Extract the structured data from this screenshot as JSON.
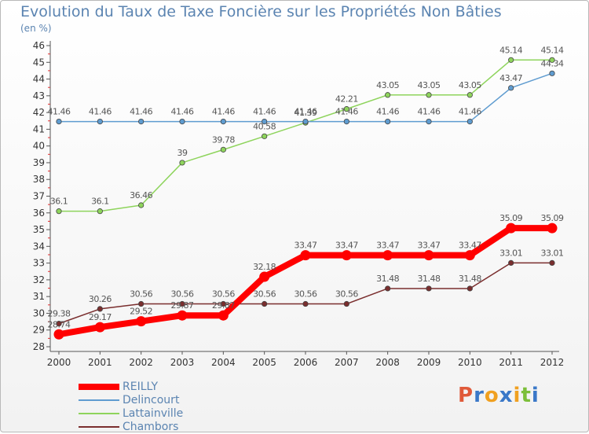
{
  "title": "Evolution du Taux de Taxe Foncière sur les Propriétés Non Bâties",
  "subtitle": "(en %)",
  "logo": {
    "text": "Proxiti",
    "colors": [
      "#e05a3a",
      "#3a78c8",
      "#f0a020",
      "#3a78c8",
      "#f0a020",
      "#7cbf3a",
      "#3a78c8"
    ]
  },
  "chart_data": {
    "type": "line",
    "title": "Evolution du Taux de Taxe Foncière sur les Propriétés Non Bâties",
    "ylabel": "(en %)",
    "xlabel": "",
    "x": [
      "2000",
      "2001",
      "2002",
      "2003",
      "2004",
      "2005",
      "2006",
      "2007",
      "2008",
      "2009",
      "2010",
      "2011",
      "2012"
    ],
    "ylim": [
      28,
      46
    ],
    "yticks": [
      "28",
      "29",
      "30",
      "31",
      "32",
      "33",
      "34",
      "35",
      "36",
      "37",
      "38",
      "39",
      "40",
      "41",
      "42",
      "43",
      "44",
      "45",
      "46"
    ],
    "grid": false,
    "legend": "bottom-left",
    "series": [
      {
        "name": "REILLY",
        "color": "#ff0000",
        "values": [
          28.74,
          29.17,
          29.52,
          29.87,
          29.87,
          32.18,
          33.47,
          33.47,
          33.47,
          33.47,
          33.47,
          35.09,
          35.09
        ],
        "labels": [
          "28.74",
          "29.17",
          "29.52",
          "29.87",
          "29.87",
          "32.18",
          "33.47",
          "33.47",
          "33.47",
          "33.47",
          "33.47",
          "35.09",
          "35.09"
        ]
      },
      {
        "name": "Delincourt",
        "color": "#5f9cd0",
        "values": [
          41.46,
          41.46,
          41.46,
          41.46,
          41.46,
          41.46,
          41.46,
          41.46,
          41.46,
          41.46,
          41.46,
          43.47,
          44.34
        ],
        "labels": [
          "41.46",
          "41.46",
          "41.46",
          "41.46",
          "41.46",
          "41.46",
          "41.46",
          "41.46",
          "41.46",
          "41.46",
          "41.46",
          "43.47",
          "44.34"
        ]
      },
      {
        "name": "Lattainville",
        "color": "#8ed45c",
        "values": [
          36.1,
          36.1,
          36.46,
          39,
          39.78,
          40.58,
          41.39,
          42.21,
          43.05,
          43.05,
          43.05,
          45.14,
          45.14
        ],
        "labels": [
          "36.1",
          "36.1",
          "36.46",
          "39",
          "39.78",
          "40.58",
          "41.39",
          "42.21",
          "43.05",
          "43.05",
          "43.05",
          "45.14",
          "45.14"
        ]
      },
      {
        "name": "Chambors",
        "color": "#7a2e2e",
        "values": [
          29.38,
          30.26,
          30.56,
          30.56,
          30.56,
          30.56,
          30.56,
          30.56,
          31.48,
          31.48,
          31.48,
          33.01,
          33.01
        ],
        "labels": [
          "29.38",
          "30.26",
          "30.56",
          "30.56",
          "30.56",
          "30.56",
          "30.56",
          "30.56",
          "31.48",
          "31.48",
          "31.48",
          "33.01",
          "33.01"
        ]
      }
    ]
  }
}
